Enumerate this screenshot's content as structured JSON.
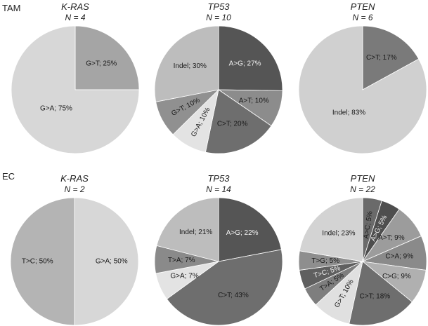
{
  "chart_data": [
    {
      "type": "pie",
      "row": "TAM",
      "title": "K-RAS",
      "n_label": "N = 4",
      "slices": [
        {
          "label": "G>T; 25%",
          "value": 25,
          "color": "#a5a5a5"
        },
        {
          "label": "G>A; 75%",
          "value": 75,
          "color": "#d7d7d7"
        }
      ]
    },
    {
      "type": "pie",
      "row": "TAM",
      "title": "TP53",
      "n_label": "N = 10",
      "slices": [
        {
          "label": "A>G; 27%",
          "value": 27,
          "color": "#555555",
          "light": true
        },
        {
          "label": "A>T; 10%",
          "value": 10,
          "color": "#8c8c8c"
        },
        {
          "label": "C>T; 20%",
          "value": 20,
          "color": "#6e6e6e"
        },
        {
          "label": "G>A; 10%",
          "value": 10,
          "color": "#e3e3e3",
          "rotate": true
        },
        {
          "label": "G>T; 10%",
          "value": 10,
          "color": "#909090",
          "rotate": true
        },
        {
          "label": "Indel; 30%",
          "value": 30,
          "color": "#bdbdbd"
        }
      ]
    },
    {
      "type": "pie",
      "row": "TAM",
      "title": "PTEN",
      "n_label": "N = 6",
      "slices": [
        {
          "label": "C>T; 17%",
          "value": 17,
          "color": "#7a7a7a"
        },
        {
          "label": "Indel; 83%",
          "value": 83,
          "color": "#d0d0d0"
        }
      ]
    },
    {
      "type": "pie",
      "row": "EC",
      "title": "K-RAS",
      "n_label": "N = 2",
      "slices": [
        {
          "label": "G>A; 50%",
          "value": 50,
          "color": "#d7d7d7"
        },
        {
          "label": "T>C; 50%",
          "value": 50,
          "color": "#b4b4b4"
        }
      ]
    },
    {
      "type": "pie",
      "row": "EC",
      "title": "TP53",
      "n_label": "N = 14",
      "slices": [
        {
          "label": "A>G; 22%",
          "value": 22,
          "color": "#555555",
          "light": true
        },
        {
          "label": "C>T; 43%",
          "value": 43,
          "color": "#6e6e6e"
        },
        {
          "label": "G>A; 7%",
          "value": 7,
          "color": "#e3e3e3"
        },
        {
          "label": "T>A; 7%",
          "value": 7,
          "color": "#8a8a8a"
        },
        {
          "label": "Indel; 21%",
          "value": 21,
          "color": "#bdbdbd"
        }
      ]
    },
    {
      "type": "pie",
      "row": "EC",
      "title": "PTEN",
      "n_label": "N = 22",
      "slices": [
        {
          "label": "A>C; 5%",
          "value": 5,
          "color": "#6a6a6a",
          "rotate": true
        },
        {
          "label": "A>G; 5%",
          "value": 5,
          "color": "#4e4e4e",
          "rotate": true,
          "light": true
        },
        {
          "label": "A>T; 9%",
          "value": 9,
          "color": "#9c9c9c"
        },
        {
          "label": "C>A; 9%",
          "value": 9,
          "color": "#8a8a8a"
        },
        {
          "label": "C>G; 9%",
          "value": 9,
          "color": "#b0b0b0"
        },
        {
          "label": "C>T; 18%",
          "value": 18,
          "color": "#6e6e6e"
        },
        {
          "label": "G>T; 10%",
          "value": 10,
          "color": "#e0e0e0",
          "rotate": true
        },
        {
          "label": "T>A; 5%",
          "value": 5,
          "color": "#7e7e7e",
          "rotate": true
        },
        {
          "label": "T>C; 5%",
          "value": 5,
          "color": "#5f5f5f",
          "rotate": true,
          "light": true
        },
        {
          "label": "T>G; 5%",
          "value": 5,
          "color": "#8e8e8e"
        },
        {
          "label": "Indel; 23%",
          "value": 23,
          "color": "#d3d3d3"
        }
      ]
    }
  ]
}
